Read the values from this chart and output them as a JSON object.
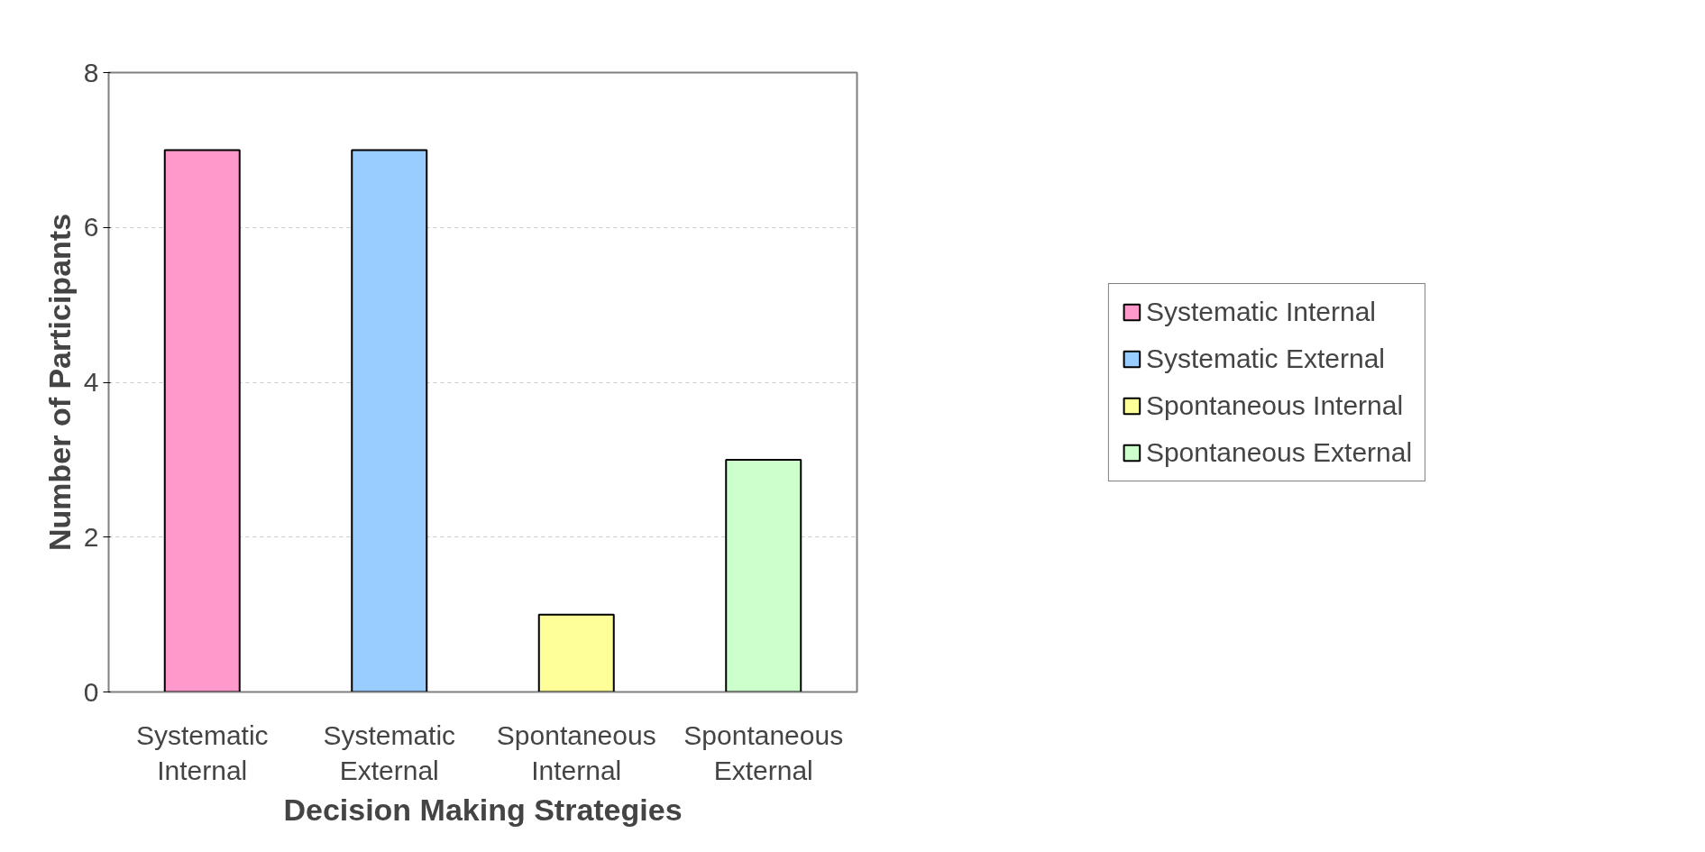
{
  "chart_data": {
    "type": "bar",
    "xlabel": "Decision Making Strategies",
    "ylabel": "Number of Participants",
    "categories": [
      "Systematic Internal",
      "Systematic External",
      "Spontaneous Internal",
      "Spontaneous External"
    ],
    "series": [
      {
        "name": "Systematic Internal",
        "color": "#ff99cc",
        "values": [
          7,
          null,
          null,
          null
        ]
      },
      {
        "name": "Systematic External",
        "color": "#99ccff",
        "values": [
          null,
          7,
          null,
          null
        ]
      },
      {
        "name": "Spontaneous Internal",
        "color": "#ffff99",
        "values": [
          null,
          null,
          1,
          null
        ]
      },
      {
        "name": "Spontaneous External",
        "color": "#ccffcc",
        "values": [
          null,
          null,
          null,
          3
        ]
      }
    ],
    "ylim": [
      0,
      8
    ],
    "yticks": [
      0,
      2,
      4,
      6,
      8
    ],
    "grid": "y",
    "legend": "right"
  }
}
